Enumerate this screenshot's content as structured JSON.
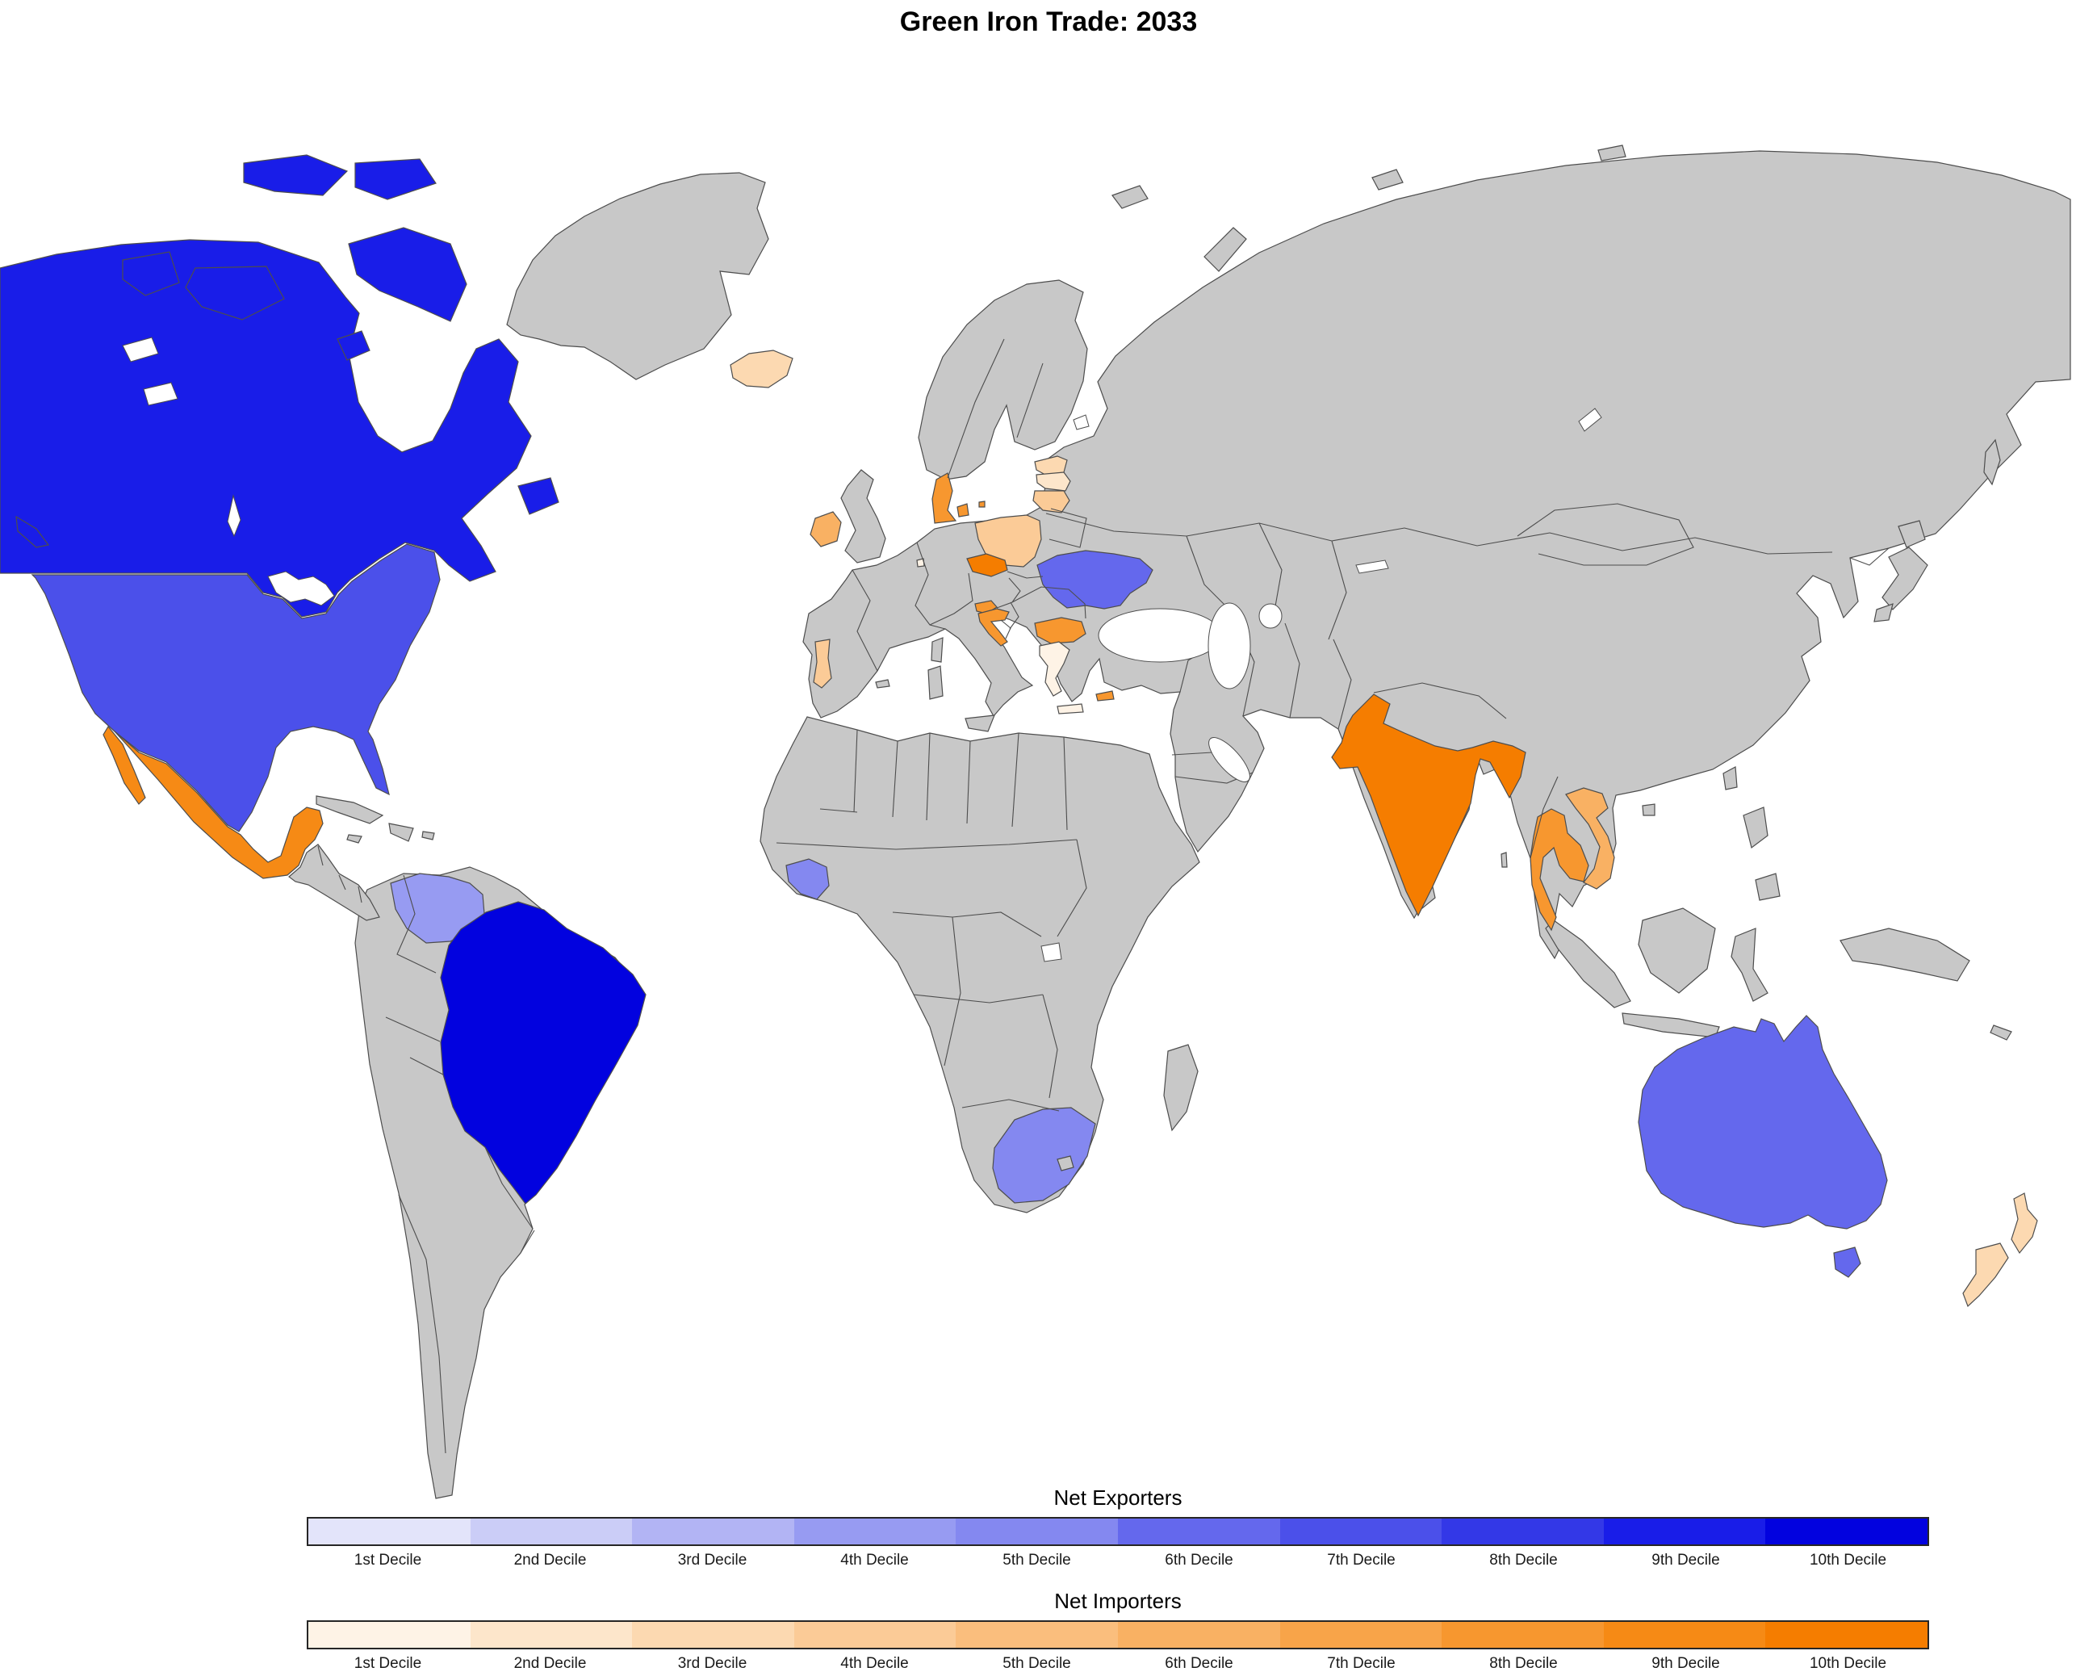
{
  "title": "Green Iron Trade: 2033",
  "legend": {
    "exporters": {
      "title": "Net Exporters",
      "labels": [
        "1st Decile",
        "2nd Decile",
        "3rd Decile",
        "4th Decile",
        "5th Decile",
        "6th Decile",
        "7th Decile",
        "8th Decile",
        "9th Decile",
        "10th Decile"
      ],
      "colors": [
        "#E3E4FA",
        "#CBCDF7",
        "#B2B4F4",
        "#979BF2",
        "#8488F0",
        "#6468ED",
        "#4B50EA",
        "#3338E7",
        "#191DE8",
        "#0202DF"
      ]
    },
    "importers": {
      "title": "Net Importers",
      "labels": [
        "1st Decile",
        "2nd Decile",
        "3rd Decile",
        "4th Decile",
        "5th Decile",
        "6th Decile",
        "7th Decile",
        "8th Decile",
        "9th Decile",
        "10th Decile"
      ],
      "colors": [
        "#FEF3E6",
        "#FDE6CB",
        "#FCD9B1",
        "#FBCB97",
        "#FABE7D",
        "#F9B163",
        "#F8A449",
        "#F7972F",
        "#F68A15",
        "#F57D00"
      ]
    }
  },
  "map": {
    "ocean_color": "#FFFFFF",
    "land_color": "#C8C8C8",
    "border_color": "#4D4D4D",
    "countries": [
      {
        "id": "canada",
        "name": "Canada",
        "group": "exporters",
        "decile": 9
      },
      {
        "id": "united-states",
        "name": "United States",
        "group": "exporters",
        "decile": 7
      },
      {
        "id": "brazil",
        "name": "Brazil",
        "group": "exporters",
        "decile": 10
      },
      {
        "id": "venezuela",
        "name": "Venezuela",
        "group": "exporters",
        "decile": 4
      },
      {
        "id": "guinea",
        "name": "Guinea",
        "group": "exporters",
        "decile": 5
      },
      {
        "id": "south-africa",
        "name": "South Africa",
        "group": "exporters",
        "decile": 5
      },
      {
        "id": "ukraine",
        "name": "Ukraine",
        "group": "exporters",
        "decile": 6
      },
      {
        "id": "australia",
        "name": "Australia",
        "group": "exporters",
        "decile": 6
      },
      {
        "id": "mexico",
        "name": "Mexico",
        "group": "importers",
        "decile": 9
      },
      {
        "id": "iceland",
        "name": "Iceland",
        "group": "importers",
        "decile": 3
      },
      {
        "id": "ireland",
        "name": "Ireland",
        "group": "importers",
        "decile": 6
      },
      {
        "id": "portugal",
        "name": "Portugal",
        "group": "importers",
        "decile": 4
      },
      {
        "id": "luxembourg",
        "name": "Luxembourg",
        "group": "importers",
        "decile": 1
      },
      {
        "id": "denmark",
        "name": "Denmark",
        "group": "importers",
        "decile": 8
      },
      {
        "id": "estonia",
        "name": "Estonia",
        "group": "importers",
        "decile": 3
      },
      {
        "id": "latvia",
        "name": "Latvia",
        "group": "importers",
        "decile": 2
      },
      {
        "id": "lithuania",
        "name": "Lithuania",
        "group": "importers",
        "decile": 4
      },
      {
        "id": "poland",
        "name": "Poland",
        "group": "importers",
        "decile": 4
      },
      {
        "id": "czechia",
        "name": "Czechia",
        "group": "importers",
        "decile": 10
      },
      {
        "id": "slovenia",
        "name": "Slovenia",
        "group": "importers",
        "decile": 8
      },
      {
        "id": "croatia",
        "name": "Croatia",
        "group": "importers",
        "decile": 8
      },
      {
        "id": "greece",
        "name": "Greece",
        "group": "importers",
        "decile": 1
      },
      {
        "id": "bulgaria",
        "name": "Bulgaria",
        "group": "importers",
        "decile": 8
      },
      {
        "id": "cyprus",
        "name": "Cyprus",
        "group": "importers",
        "decile": 8
      },
      {
        "id": "india",
        "name": "India",
        "group": "importers",
        "decile": 10
      },
      {
        "id": "thailand",
        "name": "Thailand",
        "group": "importers",
        "decile": 8
      },
      {
        "id": "vietnam",
        "name": "Vietnam",
        "group": "importers",
        "decile": 6
      },
      {
        "id": "new-zealand",
        "name": "New Zealand",
        "group": "importers",
        "decile": 3
      }
    ]
  }
}
